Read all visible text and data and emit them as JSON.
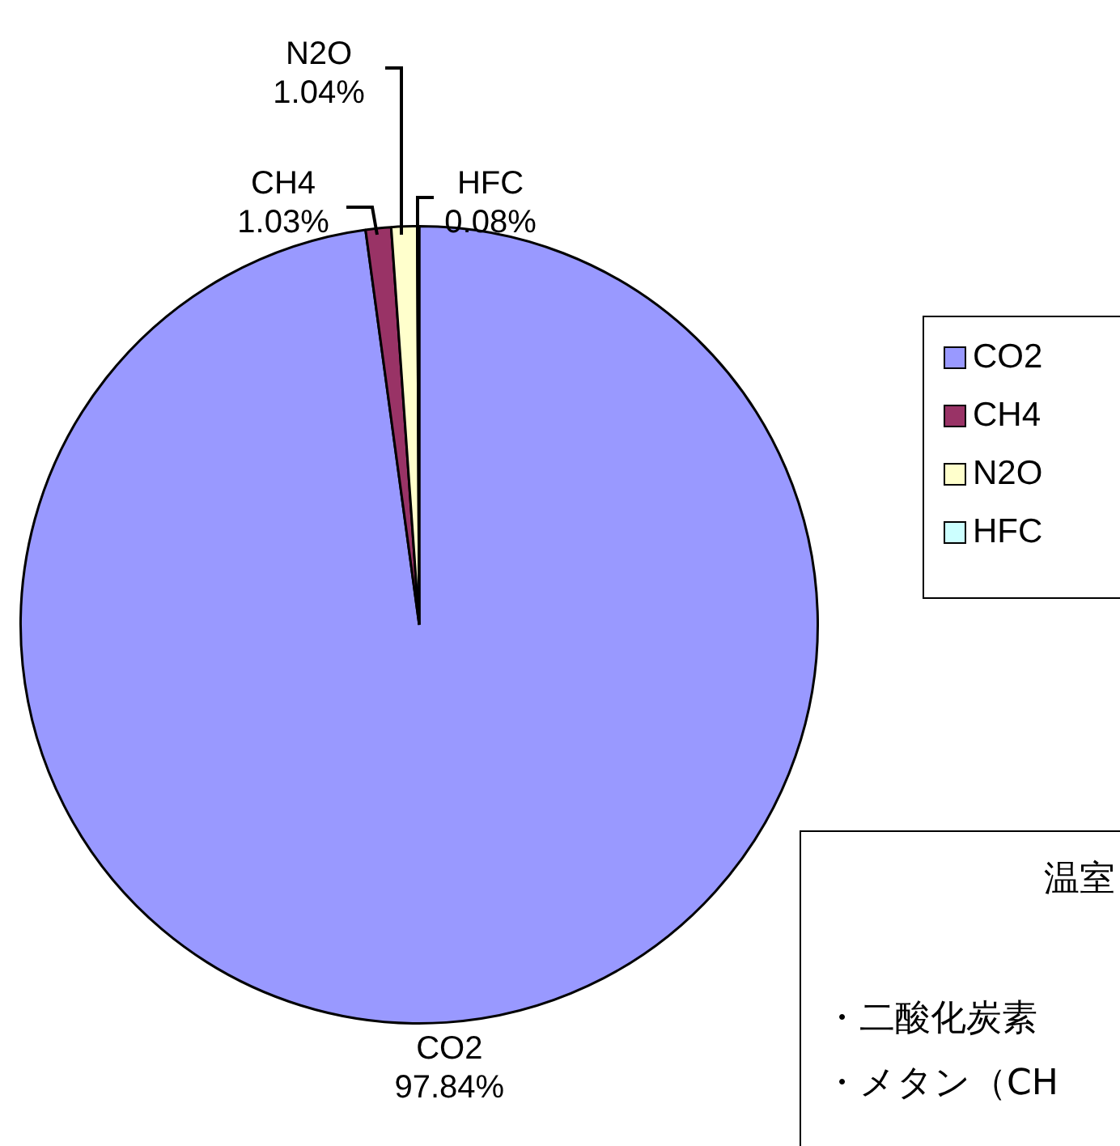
{
  "chart_data": {
    "type": "pie",
    "categories": [
      "CO2",
      "CH4",
      "N2O",
      "HFC"
    ],
    "values": [
      97.84,
      1.03,
      1.04,
      0.08
    ],
    "value_labels": [
      "97.84%",
      "1.03%",
      "1.04%",
      "0.08%"
    ],
    "colors": [
      "#9999ff",
      "#993366",
      "#ffffcc",
      "#ccffff"
    ],
    "legend": "right",
    "annotations": [
      "温室",
      "・二酸化炭素",
      "・メタン（CH"
    ]
  }
}
